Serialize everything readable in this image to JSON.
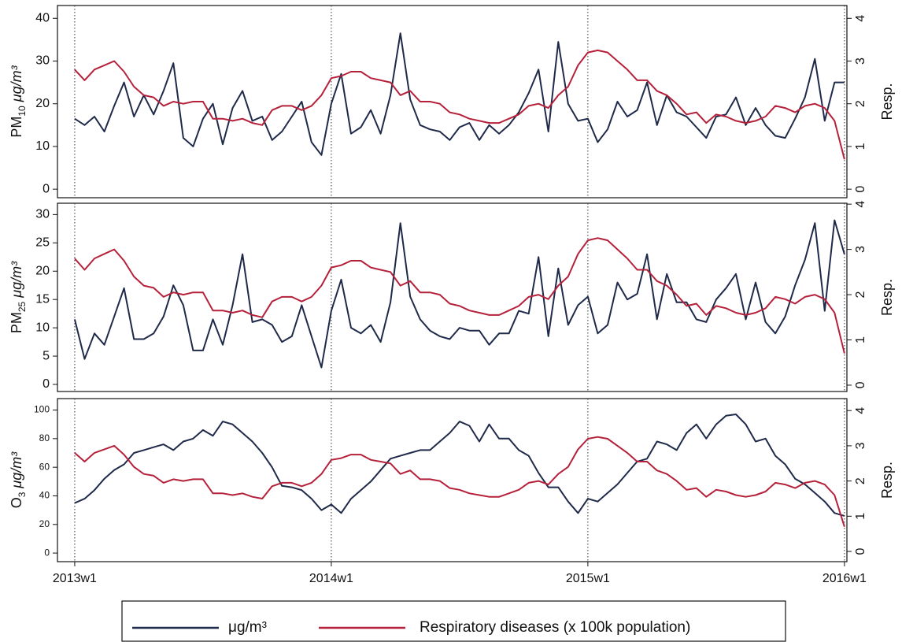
{
  "chart_data": [
    {
      "type": "line",
      "y_label": "PM",
      "y_label_sub": "10",
      "y_label_unit": "μg/m³",
      "y2_label": "Resp.",
      "x": [
        0,
        2,
        4,
        6,
        8,
        10,
        12,
        14,
        16,
        18,
        20,
        22,
        24,
        26,
        28,
        30,
        32,
        34,
        36,
        38,
        40,
        42,
        44,
        46,
        48,
        50,
        52,
        54,
        56,
        58,
        60,
        62,
        64,
        66,
        68,
        70,
        72,
        74,
        76,
        78,
        80,
        82,
        84,
        86,
        88,
        90,
        92,
        94,
        96,
        98,
        100,
        102,
        104,
        106,
        108,
        110,
        112,
        114,
        116,
        118,
        120,
        122,
        124,
        126,
        128,
        130,
        132,
        134,
        136,
        138,
        140,
        142,
        144,
        146,
        148,
        150,
        152,
        154,
        156
      ],
      "xlim": [
        -3.5,
        156.5
      ],
      "xticks": [
        0,
        52,
        104,
        156
      ],
      "ylim": [
        -2,
        43
      ],
      "yticks": [
        0,
        10,
        20,
        30,
        40
      ],
      "y2lim": [
        -0.2,
        4.3
      ],
      "y2ticks": [
        0,
        1,
        2,
        3,
        4
      ],
      "series": [
        {
          "name": "μg/m³",
          "color": "#1f2a4a",
          "values": [
            16.5,
            15,
            17,
            13.5,
            19.5,
            25,
            17,
            22,
            17.5,
            23,
            29.5,
            12,
            10,
            16.5,
            20,
            10.5,
            19,
            23,
            16,
            17,
            11.5,
            13.5,
            17,
            20.5,
            11,
            8,
            20,
            27,
            13,
            14.5,
            18.5,
            13,
            22,
            36.5,
            21,
            15,
            14,
            13.5,
            11.5,
            14.5,
            15.5,
            11.5,
            15,
            13,
            15,
            18,
            22.5,
            28,
            13.5,
            34.5,
            20,
            16,
            16.5,
            11,
            14,
            20.5,
            17,
            18.5,
            25,
            15,
            22,
            18,
            17,
            14.5,
            12,
            17,
            17.5,
            21.5,
            15,
            19,
            15,
            12.5,
            12,
            16.5,
            21.5,
            30.5,
            16,
            25,
            25
          ]
        },
        {
          "name": "Respiratory diseases (x 100k population)",
          "color": "#b5213a",
          "axis": "y2",
          "values": [
            2.8,
            2.55,
            2.8,
            2.9,
            3.0,
            2.75,
            2.4,
            2.2,
            2.15,
            1.95,
            2.05,
            2.0,
            2.05,
            2.05,
            1.65,
            1.65,
            1.6,
            1.65,
            1.55,
            1.5,
            1.85,
            1.95,
            1.95,
            1.85,
            1.95,
            2.2,
            2.6,
            2.65,
            2.75,
            2.75,
            2.6,
            2.55,
            2.5,
            2.2,
            2.3,
            2.05,
            2.05,
            2.0,
            1.8,
            1.75,
            1.65,
            1.6,
            1.55,
            1.55,
            1.65,
            1.75,
            1.95,
            2.0,
            1.9,
            2.2,
            2.4,
            2.9,
            3.2,
            3.25,
            3.2,
            3.0,
            2.8,
            2.55,
            2.55,
            2.3,
            2.2,
            2.0,
            1.75,
            1.8,
            1.55,
            1.75,
            1.7,
            1.6,
            1.55,
            1.6,
            1.7,
            1.95,
            1.9,
            1.8,
            1.95,
            2.0,
            1.9,
            1.6,
            0.7
          ]
        }
      ]
    },
    {
      "type": "line",
      "y_label": "PM",
      "y_label_sub": "25",
      "y_label_unit": "μg/m³",
      "y2_label": "Resp.",
      "x": [
        0,
        2,
        4,
        6,
        8,
        10,
        12,
        14,
        16,
        18,
        20,
        22,
        24,
        26,
        28,
        30,
        32,
        34,
        36,
        38,
        40,
        42,
        44,
        46,
        48,
        50,
        52,
        54,
        56,
        58,
        60,
        62,
        64,
        66,
        68,
        70,
        72,
        74,
        76,
        78,
        80,
        82,
        84,
        86,
        88,
        90,
        92,
        94,
        96,
        98,
        100,
        102,
        104,
        106,
        108,
        110,
        112,
        114,
        116,
        118,
        120,
        122,
        124,
        126,
        128,
        130,
        132,
        134,
        136,
        138,
        140,
        142,
        144,
        146,
        148,
        150,
        152,
        154,
        156
      ],
      "xlim": [
        -3.5,
        156.5
      ],
      "xticks": [
        0,
        52,
        104,
        156
      ],
      "ylim": [
        -1.25,
        32
      ],
      "yticks": [
        0,
        5,
        10,
        15,
        20,
        25,
        30
      ],
      "y2lim": [
        -0.14,
        4.02
      ],
      "y2ticks": [
        0,
        1,
        2,
        3,
        4
      ],
      "series": [
        {
          "name": "μg/m³",
          "color": "#1f2a4a",
          "values": [
            11.5,
            4.5,
            9,
            7,
            12,
            17,
            8,
            8,
            9,
            12,
            17.5,
            14,
            6,
            6,
            11.5,
            7,
            14,
            23,
            11,
            11.5,
            10.5,
            7.5,
            8.5,
            14,
            8.5,
            3,
            13,
            18.5,
            10,
            9,
            10.5,
            7.5,
            14.5,
            28.5,
            15.5,
            11.5,
            9.5,
            8.5,
            8,
            10,
            9.5,
            9.5,
            7,
            9,
            9,
            13,
            12.5,
            22.5,
            8.5,
            20.5,
            10.5,
            14,
            15.5,
            9,
            10.5,
            18,
            15,
            16,
            23,
            11.5,
            19.5,
            14.5,
            14.5,
            11.5,
            11,
            15,
            17,
            19.5,
            11.5,
            18,
            11,
            9,
            12,
            17.5,
            22,
            28.5,
            13,
            29,
            23
          ]
        },
        {
          "name": "Respiratory diseases (x 100k population)",
          "color": "#b5213a",
          "axis": "y2",
          "values": [
            2.8,
            2.55,
            2.8,
            2.9,
            3.0,
            2.75,
            2.4,
            2.2,
            2.15,
            1.95,
            2.05,
            2.0,
            2.05,
            2.05,
            1.65,
            1.65,
            1.6,
            1.65,
            1.55,
            1.5,
            1.85,
            1.95,
            1.95,
            1.85,
            1.95,
            2.2,
            2.6,
            2.65,
            2.75,
            2.75,
            2.6,
            2.55,
            2.5,
            2.2,
            2.3,
            2.05,
            2.05,
            2.0,
            1.8,
            1.75,
            1.65,
            1.6,
            1.55,
            1.55,
            1.65,
            1.75,
            1.95,
            2.0,
            1.9,
            2.2,
            2.4,
            2.9,
            3.2,
            3.25,
            3.2,
            3.0,
            2.8,
            2.55,
            2.55,
            2.3,
            2.2,
            2.0,
            1.75,
            1.8,
            1.55,
            1.75,
            1.7,
            1.6,
            1.55,
            1.6,
            1.7,
            1.95,
            1.9,
            1.8,
            1.95,
            2.0,
            1.9,
            1.6,
            0.7
          ]
        }
      ]
    },
    {
      "type": "line",
      "y_label": "O",
      "y_label_sub": "3",
      "y_label_unit": "μg/m³",
      "y2_label": "Resp.",
      "x": [
        0,
        2,
        4,
        6,
        8,
        10,
        12,
        14,
        16,
        18,
        20,
        22,
        24,
        26,
        28,
        30,
        32,
        34,
        36,
        38,
        40,
        42,
        44,
        46,
        48,
        50,
        52,
        54,
        56,
        58,
        60,
        62,
        64,
        66,
        68,
        70,
        72,
        74,
        76,
        78,
        80,
        82,
        84,
        86,
        88,
        90,
        92,
        94,
        96,
        98,
        100,
        102,
        104,
        106,
        108,
        110,
        112,
        114,
        116,
        118,
        120,
        122,
        124,
        126,
        128,
        130,
        132,
        134,
        136,
        138,
        140,
        142,
        144,
        146,
        148,
        150,
        152,
        154,
        156
      ],
      "xlim": [
        -3.5,
        156.5
      ],
      "xticks": [
        {
          "value": 0,
          "label": "2013w1"
        },
        {
          "value": 52,
          "label": "2014w1"
        },
        {
          "value": 104,
          "label": "2015w1"
        },
        {
          "value": 156,
          "label": "2016w1"
        }
      ],
      "ylim": [
        -6,
        108
      ],
      "yticks": [
        0,
        20,
        40,
        60,
        80,
        100
      ],
      "y2lim": [
        -0.29,
        4.34
      ],
      "y2ticks": [
        0,
        1,
        2,
        3,
        4
      ],
      "series": [
        {
          "name": "μg/m³",
          "color": "#1f2a4a",
          "values": [
            35,
            38,
            44,
            52,
            58,
            62,
            70,
            72,
            74,
            76,
            72,
            78,
            80,
            86,
            82,
            92,
            90,
            84,
            78,
            70,
            60,
            47,
            46,
            44,
            38,
            30,
            34,
            28,
            38,
            44,
            50,
            58,
            66,
            68,
            70,
            72,
            72,
            78,
            84,
            92,
            89,
            78,
            90,
            80,
            80,
            72,
            68,
            56,
            46,
            46,
            36,
            28,
            38,
            36,
            42,
            48,
            56,
            64,
            66,
            78,
            76,
            72,
            84,
            90,
            80,
            90,
            96,
            97,
            90,
            78,
            80,
            68,
            62,
            52,
            48,
            42,
            36,
            28,
            26
          ]
        },
        {
          "name": "Respiratory diseases (x 100k population)",
          "color": "#b5213a",
          "axis": "y2",
          "values": [
            2.8,
            2.55,
            2.8,
            2.9,
            3.0,
            2.75,
            2.4,
            2.2,
            2.15,
            1.95,
            2.05,
            2.0,
            2.05,
            2.05,
            1.65,
            1.65,
            1.6,
            1.65,
            1.55,
            1.5,
            1.85,
            1.95,
            1.95,
            1.85,
            1.95,
            2.2,
            2.6,
            2.65,
            2.75,
            2.75,
            2.6,
            2.55,
            2.5,
            2.2,
            2.3,
            2.05,
            2.05,
            2.0,
            1.8,
            1.75,
            1.65,
            1.6,
            1.55,
            1.55,
            1.65,
            1.75,
            1.95,
            2.0,
            1.9,
            2.2,
            2.4,
            2.9,
            3.2,
            3.25,
            3.2,
            3.0,
            2.8,
            2.55,
            2.55,
            2.3,
            2.2,
            2.0,
            1.75,
            1.8,
            1.55,
            1.75,
            1.7,
            1.6,
            1.55,
            1.6,
            1.7,
            1.95,
            1.9,
            1.8,
            1.95,
            2.0,
            1.9,
            1.6,
            0.7
          ]
        }
      ]
    }
  ]
}
